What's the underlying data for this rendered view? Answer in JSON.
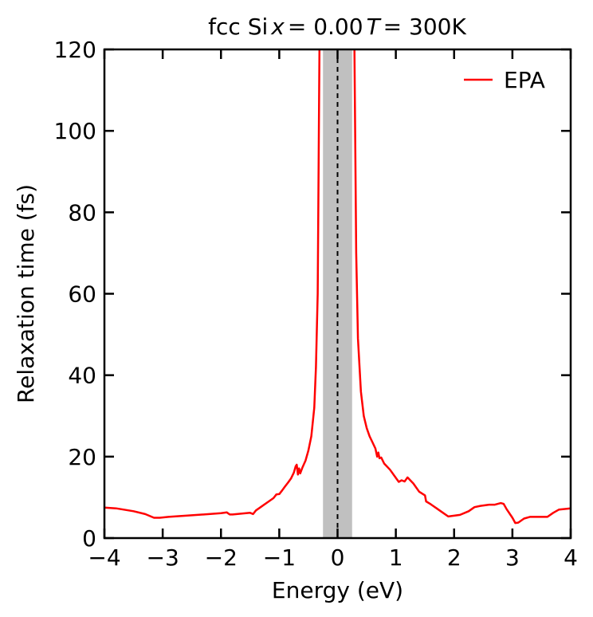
{
  "chart_data": {
    "type": "line",
    "title": {
      "material": "fcc Si",
      "x_symbol": "x",
      "x_value": " = 0.00",
      "t_symbol": "T",
      "t_value": " = 300K"
    },
    "xlabel": "Energy (eV)",
    "ylabel": "Relaxation time (fs)",
    "xlim": [
      -4,
      4
    ],
    "ylim": [
      0,
      120
    ],
    "xticks": [
      -4,
      -3,
      -2,
      -1,
      0,
      1,
      2,
      3,
      4
    ],
    "xtick_labels": [
      "−4",
      "−3",
      "−2",
      "−1",
      "0",
      "1",
      "2",
      "3",
      "4"
    ],
    "yticks": [
      0,
      20,
      40,
      60,
      80,
      100,
      120
    ],
    "ytick_labels": [
      "0",
      "20",
      "40",
      "60",
      "80",
      "100",
      "120"
    ],
    "grid": false,
    "legend_position": "top-right",
    "shaded_band": {
      "x": [
        -0.25,
        0.25
      ],
      "color": "#c0c0c0"
    },
    "vertical_reference_line": {
      "x": 0,
      "style": "dashed",
      "color": "#000000"
    },
    "series": [
      {
        "name": "EPA",
        "color": "#ff0000",
        "segments": [
          {
            "x": [
              -4.0,
              -3.8,
              -3.5,
              -3.3,
              -3.15,
              -3.05,
              -2.9,
              -2.5,
              -2.0,
              -1.9,
              -1.85,
              -1.8,
              -1.5,
              -1.45,
              -1.4,
              -1.3,
              -1.2,
              -1.1,
              -1.05,
              -1.0,
              -0.95,
              -0.9,
              -0.85,
              -0.8,
              -0.75,
              -0.72,
              -0.7,
              -0.68,
              -0.66,
              -0.64,
              -0.6,
              -0.55,
              -0.5,
              -0.45,
              -0.4,
              -0.37,
              -0.34,
              -0.31
            ],
            "y": [
              7.5,
              7.3,
              6.6,
              5.9,
              5.0,
              5.0,
              5.2,
              5.6,
              6.1,
              6.3,
              5.8,
              5.8,
              6.2,
              5.9,
              6.8,
              7.8,
              8.8,
              9.8,
              10.7,
              10.8,
              11.7,
              12.7,
              13.6,
              14.6,
              16.1,
              17.6,
              18.0,
              15.6,
              17.1,
              15.9,
              17.4,
              19.0,
              21.5,
              25.0,
              32.0,
              42.0,
              60.0,
              120.0
            ]
          },
          {
            "x": [
              0.29,
              0.32,
              0.35,
              0.4,
              0.45,
              0.5,
              0.55,
              0.6,
              0.65,
              0.68,
              0.7,
              0.72,
              0.75,
              0.8,
              0.9,
              1.0,
              1.05,
              1.1,
              1.15,
              1.2,
              1.3,
              1.4,
              1.5,
              1.52,
              1.6,
              1.7,
              1.8,
              1.9,
              1.95,
              2.1,
              2.25,
              2.35,
              2.45,
              2.6,
              2.7,
              2.8,
              2.85,
              2.9,
              3.0,
              3.05,
              3.1,
              3.2,
              3.3,
              3.4,
              3.6,
              3.7,
              3.8,
              4.0
            ],
            "y": [
              120.0,
              70.0,
              49.0,
              36.0,
              30.0,
              27.0,
              25.0,
              23.5,
              22.0,
              20.0,
              21.0,
              19.6,
              19.8,
              18.3,
              16.8,
              14.8,
              13.8,
              14.2,
              13.9,
              14.9,
              13.4,
              11.4,
              10.5,
              9.0,
              8.3,
              7.3,
              6.3,
              5.3,
              5.4,
              5.7,
              6.6,
              7.6,
              7.9,
              8.2,
              8.2,
              8.6,
              8.4,
              7.1,
              5.0,
              3.7,
              3.8,
              4.8,
              5.2,
              5.2,
              5.2,
              6.2,
              7.0,
              7.3
            ]
          }
        ]
      }
    ]
  }
}
